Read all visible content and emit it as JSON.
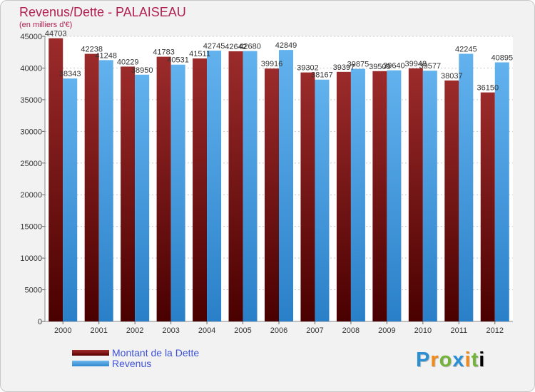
{
  "chart_data": {
    "type": "bar",
    "title": "Revenus/Dette - PALAISEAU",
    "subtitle": "(en milliers d'€)",
    "categories": [
      "2000",
      "2001",
      "2002",
      "2003",
      "2004",
      "2005",
      "2006",
      "2007",
      "2008",
      "2009",
      "2010",
      "2011",
      "2012"
    ],
    "series": [
      {
        "name": "Montant de la Dette",
        "color": "#7a1414",
        "values": [
          44703,
          42238,
          40229,
          41783,
          41511,
          42642,
          39916,
          39302,
          39397,
          39509,
          39948,
          38037,
          36150
        ],
        "labels": [
          "44703",
          "42238",
          "40229",
          "41783",
          "41511",
          "42642",
          "39916",
          "39302",
          "39397",
          "39509",
          "39948",
          "38037",
          "36150"
        ]
      },
      {
        "name": "Revenus",
        "color": "#4aa3e6",
        "values": [
          38343,
          41248,
          38950,
          40531,
          42745,
          42680,
          42849,
          38167,
          39875,
          39640,
          39577,
          42245,
          40895
        ],
        "labels": [
          "38343",
          "41248",
          "38950",
          "40531",
          "42745",
          "42680",
          "42849",
          "38167",
          "39875",
          "39640",
          "39577",
          "42245",
          "40895"
        ]
      }
    ],
    "ylim": [
      0,
      45000
    ],
    "yticks": [
      "0",
      "5000",
      "10000",
      "15000",
      "20000",
      "25000",
      "30000",
      "35000",
      "40000",
      "45000"
    ],
    "grid": true,
    "legend_position": "bottom-left"
  },
  "logo": {
    "letters": [
      "P",
      "r",
      "o",
      "x",
      "i",
      "t",
      "i"
    ]
  }
}
